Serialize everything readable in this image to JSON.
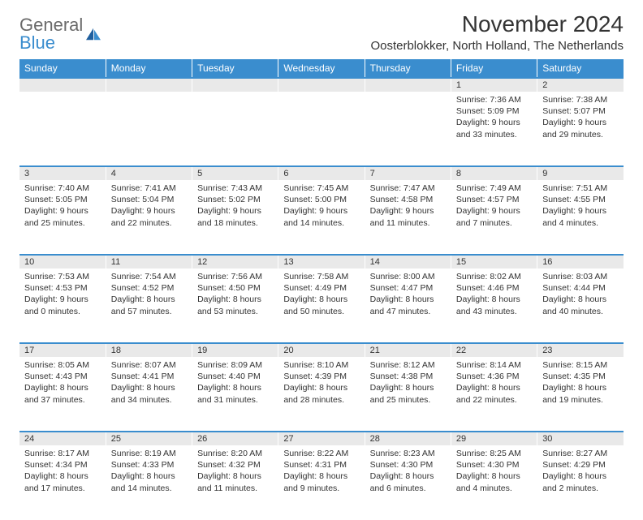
{
  "logo": {
    "line1": "General",
    "line2": "Blue"
  },
  "title": "November 2024",
  "location": "Oosterblokker, North Holland, The Netherlands",
  "colors": {
    "header_bg": "#3a8dce",
    "header_text": "#ffffff",
    "daynum_bg": "#e9e9e9",
    "row_border": "#3a8dce",
    "body_text": "#333333",
    "logo_gray": "#6a6a6a",
    "logo_blue": "#3a8dce"
  },
  "day_headers": [
    "Sunday",
    "Monday",
    "Tuesday",
    "Wednesday",
    "Thursday",
    "Friday",
    "Saturday"
  ],
  "weeks": [
    {
      "nums": [
        "",
        "",
        "",
        "",
        "",
        "1",
        "2"
      ],
      "cells": [
        null,
        null,
        null,
        null,
        null,
        {
          "sunrise": "7:36 AM",
          "sunset": "5:09 PM",
          "daylight": "9 hours and 33 minutes."
        },
        {
          "sunrise": "7:38 AM",
          "sunset": "5:07 PM",
          "daylight": "9 hours and 29 minutes."
        }
      ]
    },
    {
      "nums": [
        "3",
        "4",
        "5",
        "6",
        "7",
        "8",
        "9"
      ],
      "cells": [
        {
          "sunrise": "7:40 AM",
          "sunset": "5:05 PM",
          "daylight": "9 hours and 25 minutes."
        },
        {
          "sunrise": "7:41 AM",
          "sunset": "5:04 PM",
          "daylight": "9 hours and 22 minutes."
        },
        {
          "sunrise": "7:43 AM",
          "sunset": "5:02 PM",
          "daylight": "9 hours and 18 minutes."
        },
        {
          "sunrise": "7:45 AM",
          "sunset": "5:00 PM",
          "daylight": "9 hours and 14 minutes."
        },
        {
          "sunrise": "7:47 AM",
          "sunset": "4:58 PM",
          "daylight": "9 hours and 11 minutes."
        },
        {
          "sunrise": "7:49 AM",
          "sunset": "4:57 PM",
          "daylight": "9 hours and 7 minutes."
        },
        {
          "sunrise": "7:51 AM",
          "sunset": "4:55 PM",
          "daylight": "9 hours and 4 minutes."
        }
      ]
    },
    {
      "nums": [
        "10",
        "11",
        "12",
        "13",
        "14",
        "15",
        "16"
      ],
      "cells": [
        {
          "sunrise": "7:53 AM",
          "sunset": "4:53 PM",
          "daylight": "9 hours and 0 minutes."
        },
        {
          "sunrise": "7:54 AM",
          "sunset": "4:52 PM",
          "daylight": "8 hours and 57 minutes."
        },
        {
          "sunrise": "7:56 AM",
          "sunset": "4:50 PM",
          "daylight": "8 hours and 53 minutes."
        },
        {
          "sunrise": "7:58 AM",
          "sunset": "4:49 PM",
          "daylight": "8 hours and 50 minutes."
        },
        {
          "sunrise": "8:00 AM",
          "sunset": "4:47 PM",
          "daylight": "8 hours and 47 minutes."
        },
        {
          "sunrise": "8:02 AM",
          "sunset": "4:46 PM",
          "daylight": "8 hours and 43 minutes."
        },
        {
          "sunrise": "8:03 AM",
          "sunset": "4:44 PM",
          "daylight": "8 hours and 40 minutes."
        }
      ]
    },
    {
      "nums": [
        "17",
        "18",
        "19",
        "20",
        "21",
        "22",
        "23"
      ],
      "cells": [
        {
          "sunrise": "8:05 AM",
          "sunset": "4:43 PM",
          "daylight": "8 hours and 37 minutes."
        },
        {
          "sunrise": "8:07 AM",
          "sunset": "4:41 PM",
          "daylight": "8 hours and 34 minutes."
        },
        {
          "sunrise": "8:09 AM",
          "sunset": "4:40 PM",
          "daylight": "8 hours and 31 minutes."
        },
        {
          "sunrise": "8:10 AM",
          "sunset": "4:39 PM",
          "daylight": "8 hours and 28 minutes."
        },
        {
          "sunrise": "8:12 AM",
          "sunset": "4:38 PM",
          "daylight": "8 hours and 25 minutes."
        },
        {
          "sunrise": "8:14 AM",
          "sunset": "4:36 PM",
          "daylight": "8 hours and 22 minutes."
        },
        {
          "sunrise": "8:15 AM",
          "sunset": "4:35 PM",
          "daylight": "8 hours and 19 minutes."
        }
      ]
    },
    {
      "nums": [
        "24",
        "25",
        "26",
        "27",
        "28",
        "29",
        "30"
      ],
      "cells": [
        {
          "sunrise": "8:17 AM",
          "sunset": "4:34 PM",
          "daylight": "8 hours and 17 minutes."
        },
        {
          "sunrise": "8:19 AM",
          "sunset": "4:33 PM",
          "daylight": "8 hours and 14 minutes."
        },
        {
          "sunrise": "8:20 AM",
          "sunset": "4:32 PM",
          "daylight": "8 hours and 11 minutes."
        },
        {
          "sunrise": "8:22 AM",
          "sunset": "4:31 PM",
          "daylight": "8 hours and 9 minutes."
        },
        {
          "sunrise": "8:23 AM",
          "sunset": "4:30 PM",
          "daylight": "8 hours and 6 minutes."
        },
        {
          "sunrise": "8:25 AM",
          "sunset": "4:30 PM",
          "daylight": "8 hours and 4 minutes."
        },
        {
          "sunrise": "8:27 AM",
          "sunset": "4:29 PM",
          "daylight": "8 hours and 2 minutes."
        }
      ]
    }
  ],
  "labels": {
    "sunrise": "Sunrise:",
    "sunset": "Sunset:",
    "daylight": "Daylight:"
  }
}
